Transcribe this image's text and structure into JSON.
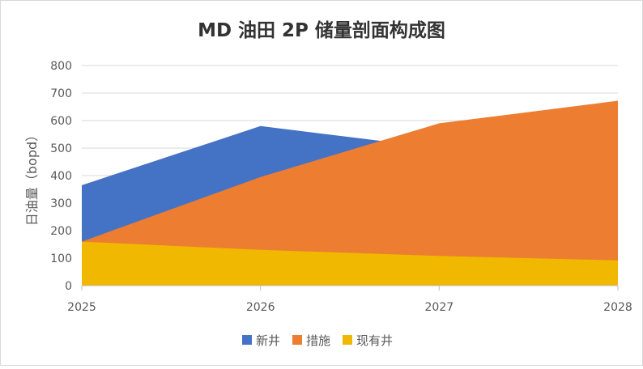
{
  "chart_data": {
    "type": "area",
    "title": "MD 油田 2P 储量剖面构成图",
    "xlabel": "",
    "ylabel": "日油量（bopd）",
    "categories": [
      "2025",
      "2026",
      "2027",
      "2028"
    ],
    "ylim": [
      0,
      800
    ],
    "yticks": [
      "0",
      "100",
      "200",
      "300",
      "400",
      "500",
      "600",
      "700",
      "800"
    ],
    "grid": true,
    "legend_position": "bottom",
    "series": [
      {
        "name": "新井",
        "color": "#4472C4",
        "values": [
          365,
          580,
          500,
          420
        ]
      },
      {
        "name": "措施",
        "color": "#ED7D31",
        "values": [
          160,
          395,
          590,
          672
        ]
      },
      {
        "name": "现有井",
        "color": "#F1B800",
        "values": [
          160,
          130,
          108,
          92
        ]
      }
    ]
  }
}
